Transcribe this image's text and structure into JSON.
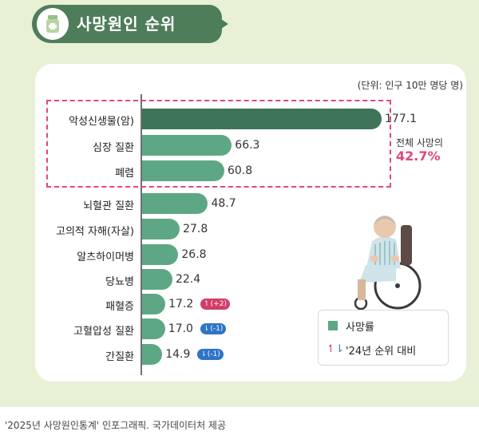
{
  "header": {
    "title": "사망원인 순위",
    "icon": "medicine-bottle-icon"
  },
  "chart_data": {
    "type": "bar",
    "orientation": "horizontal",
    "title": "사망원인 순위",
    "unit_note": "(단위: 인구 10만 명당 명)",
    "categories": [
      "악성신생물(암)",
      "심장 질환",
      "폐렴",
      "뇌혈관 질환",
      "고의적 자해(자살)",
      "알츠하이머병",
      "당뇨병",
      "패혈증",
      "고혈압성 질환",
      "간질환"
    ],
    "series": [
      {
        "name": "사망률",
        "values": [
          177.1,
          66.3,
          60.8,
          48.7,
          27.8,
          26.8,
          22.4,
          17.2,
          17.0,
          14.9
        ]
      }
    ],
    "value_labels": [
      "177.1",
      "66.3",
      "60.8",
      "48.7",
      "27.8",
      "26.8",
      "22.4",
      "17.2",
      "17.0",
      "14.9"
    ],
    "rank_change_vs_2024": [
      null,
      null,
      null,
      null,
      null,
      null,
      null,
      2,
      -1,
      -1
    ],
    "rank_change_labels": [
      "",
      "",
      "",
      "",
      "",
      "",
      "",
      "(+2)",
      "(-1)",
      "(-1)"
    ],
    "highlight": {
      "top_n": 3,
      "label": "전체 사망의",
      "value": "42.7%"
    },
    "legend": [
      {
        "label": "사망률",
        "type": "bar"
      },
      {
        "label": "'24년 순위 대비",
        "type": "rank-change"
      }
    ],
    "colors": {
      "top": "#3e7458",
      "bar": "#5ea785",
      "up": "#d23d67",
      "down": "#2e74c7",
      "highlight": "#e2477a"
    }
  },
  "caption": "'2025년 사망원인통계' 인포그래픽. 국가데이터처 제공"
}
